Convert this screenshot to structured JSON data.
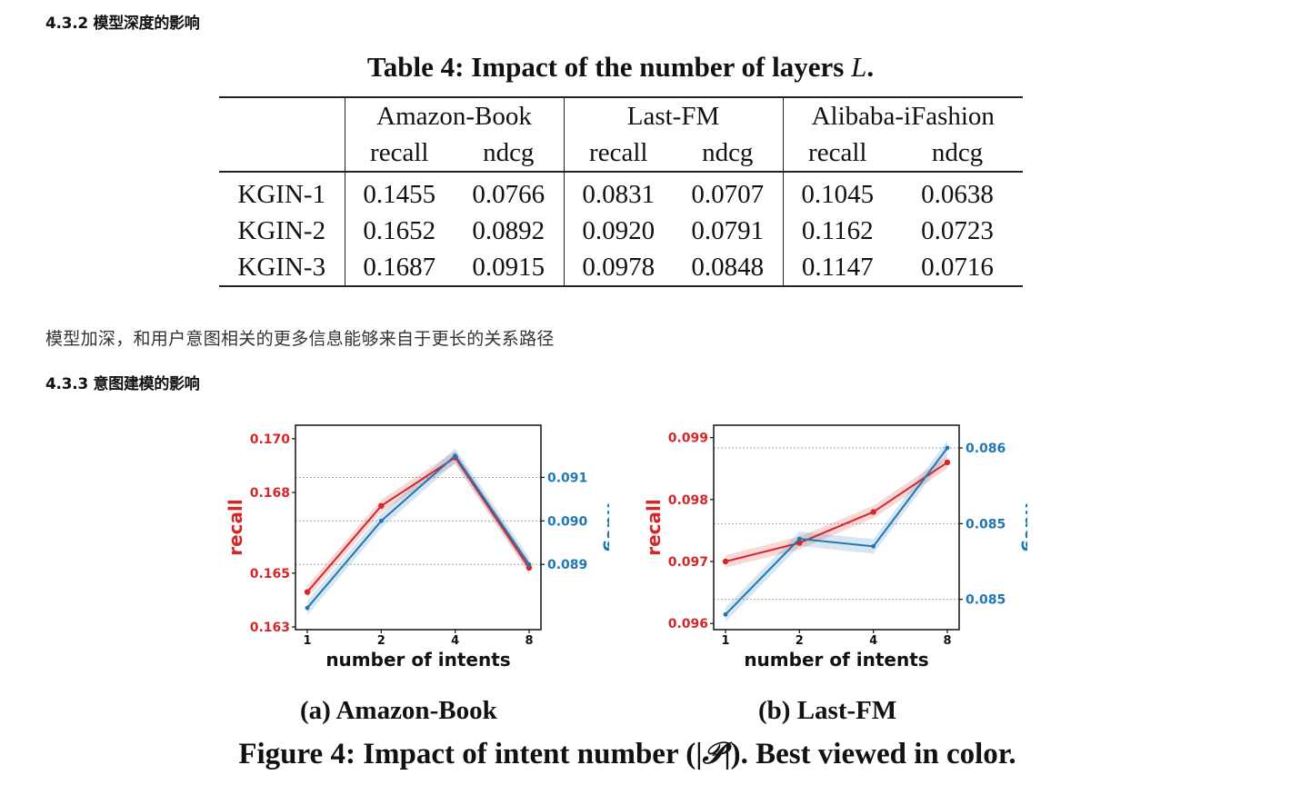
{
  "section_432": "4.3.2 模型深度的影响",
  "table": {
    "title_main": "Table 4: Impact of the number of layers ",
    "title_var": "L",
    "title_end": ".",
    "datasets": [
      "Amazon-Book",
      "Last-FM",
      "Alibaba-iFashion"
    ],
    "metric_recall": "recall",
    "metric_ndcg": "ndcg",
    "rows": [
      {
        "label": "KGIN-1",
        "values": [
          "0.1455",
          "0.0766",
          "0.0831",
          "0.0707",
          "0.1045",
          "0.0638"
        ]
      },
      {
        "label": "KGIN-2",
        "values": [
          "0.1652",
          "0.0892",
          "0.0920",
          "0.0791",
          "0.1162",
          "0.0723"
        ]
      },
      {
        "label": "KGIN-3",
        "values": [
          "0.1687",
          "0.0915",
          "0.0978",
          "0.0848",
          "0.1147",
          "0.0716"
        ]
      }
    ]
  },
  "paragraph": "模型加深，和用户意图相关的更多信息能够来自于更长的关系路径",
  "section_433": "4.3.3 意图建模的影响",
  "colors": {
    "recall": "#d62728",
    "ndcg": "#1f77b4"
  },
  "chart_data": [
    {
      "type": "line",
      "caption": "(a) Amazon-Book",
      "xlabel": "number of intents",
      "categories": [
        "1",
        "2",
        "4",
        "8"
      ],
      "y_left": {
        "label": "recall",
        "ticks": [
          "0.163",
          "0.165",
          "0.168",
          "0.170"
        ],
        "tick_values": [
          0.163,
          0.165,
          0.168,
          0.17
        ],
        "range": [
          0.1629,
          0.1705
        ]
      },
      "y_right": {
        "label": "ndcg",
        "ticks": [
          "0.089",
          "0.090",
          "0.091"
        ],
        "tick_values": [
          0.089,
          0.09,
          0.091
        ],
        "range": [
          0.0875,
          0.0922
        ]
      },
      "series": [
        {
          "name": "recall",
          "axis": "left",
          "values": [
            0.1643,
            0.1675,
            0.1693,
            0.1652
          ]
        },
        {
          "name": "ndcg",
          "axis": "right",
          "values": [
            0.088,
            0.09,
            0.0915,
            0.089
          ]
        }
      ]
    },
    {
      "type": "line",
      "caption": "(b) Last-FM",
      "xlabel": "number of intents",
      "categories": [
        "1",
        "2",
        "4",
        "8"
      ],
      "y_left": {
        "label": "recall",
        "ticks": [
          "0.096",
          "0.097",
          "0.098",
          "0.099"
        ],
        "tick_values": [
          0.096,
          0.097,
          0.098,
          0.099
        ],
        "range": [
          0.0959,
          0.0992
        ]
      },
      "y_right": {
        "label": "ndcg",
        "ticks": [
          "0.085",
          "0.085",
          "0.086"
        ],
        "tick_values": [
          0.0845,
          0.0855,
          0.0865
        ],
        "range": [
          0.0841,
          0.0868
        ]
      },
      "series": [
        {
          "name": "recall",
          "axis": "left",
          "values": [
            0.097,
            0.0973,
            0.0978,
            0.0986
          ]
        },
        {
          "name": "ndcg",
          "axis": "right",
          "values": [
            0.0843,
            0.0853,
            0.0852,
            0.0865
          ]
        }
      ]
    }
  ],
  "figure_caption_pre": "Figure 4: Impact of intent number (|",
  "figure_caption_sym": "𝒫",
  "figure_caption_post": "|). Best viewed in color."
}
